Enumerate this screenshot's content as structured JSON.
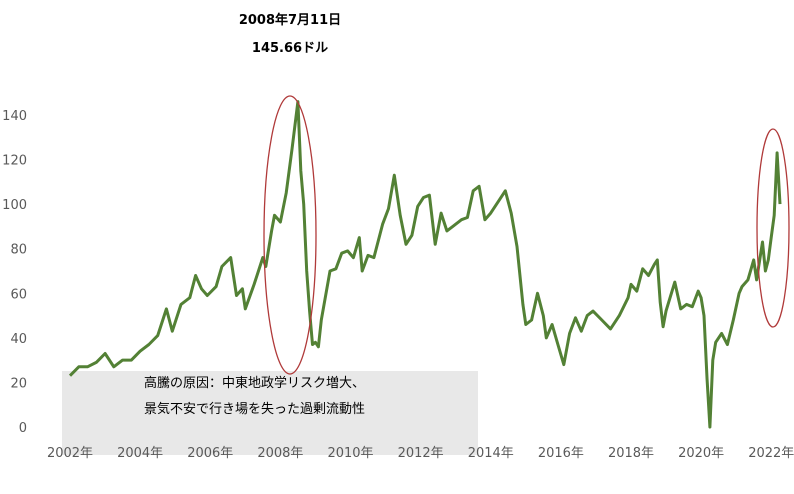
{
  "chart_data": {
    "type": "line",
    "title": "",
    "xlabel": "",
    "ylabel": "",
    "ylim": [
      0,
      150
    ],
    "xlim": [
      "2002-01",
      "2022-04"
    ],
    "grid": false,
    "legend": "none",
    "y_ticks": [
      "0",
      "20",
      "40",
      "60",
      "80",
      "100",
      "120",
      "140"
    ],
    "x_tick_labels": [
      "2002年",
      "2004年",
      "2006年",
      "2008年",
      "2010年",
      "2012年",
      "2014年",
      "2016年",
      "2018年",
      "2020年",
      "2022年"
    ],
    "series": [
      {
        "color": "#538135",
        "points": [
          [
            "2002-01",
            23
          ],
          [
            "2002-04",
            27
          ],
          [
            "2002-07",
            27
          ],
          [
            "2002-10",
            29
          ],
          [
            "2003-01",
            33
          ],
          [
            "2003-04",
            27
          ],
          [
            "2003-07",
            30
          ],
          [
            "2003-10",
            30
          ],
          [
            "2004-01",
            34
          ],
          [
            "2004-04",
            37
          ],
          [
            "2004-07",
            41
          ],
          [
            "2004-10",
            53
          ],
          [
            "2004-12",
            43
          ],
          [
            "2005-03",
            55
          ],
          [
            "2005-06",
            58
          ],
          [
            "2005-08",
            68
          ],
          [
            "2005-10",
            62
          ],
          [
            "2005-12",
            59
          ],
          [
            "2006-03",
            63
          ],
          [
            "2006-05",
            72
          ],
          [
            "2006-08",
            76
          ],
          [
            "2006-10",
            59
          ],
          [
            "2006-12",
            62
          ],
          [
            "2007-01",
            53
          ],
          [
            "2007-04",
            64
          ],
          [
            "2007-07",
            76
          ],
          [
            "2007-08",
            72
          ],
          [
            "2007-10",
            88
          ],
          [
            "2007-11",
            95
          ],
          [
            "2008-01",
            92
          ],
          [
            "2008-03",
            105
          ],
          [
            "2008-05",
            125
          ],
          [
            "2008-07",
            146
          ],
          [
            "2008-08",
            115
          ],
          [
            "2008-09",
            100
          ],
          [
            "2008-10",
            70
          ],
          [
            "2008-11",
            52
          ],
          [
            "2008-12",
            37
          ],
          [
            "2009-01",
            38
          ],
          [
            "2009-02",
            36
          ],
          [
            "2009-03",
            48
          ],
          [
            "2009-06",
            70
          ],
          [
            "2009-08",
            71
          ],
          [
            "2009-10",
            78
          ],
          [
            "2009-12",
            79
          ],
          [
            "2010-02",
            76
          ],
          [
            "2010-04",
            85
          ],
          [
            "2010-05",
            70
          ],
          [
            "2010-07",
            77
          ],
          [
            "2010-09",
            76
          ],
          [
            "2010-12",
            91
          ],
          [
            "2011-02",
            98
          ],
          [
            "2011-04",
            113
          ],
          [
            "2011-06",
            95
          ],
          [
            "2011-08",
            82
          ],
          [
            "2011-10",
            86
          ],
          [
            "2011-12",
            99
          ],
          [
            "2012-02",
            103
          ],
          [
            "2012-04",
            104
          ],
          [
            "2012-06",
            82
          ],
          [
            "2012-08",
            96
          ],
          [
            "2012-10",
            88
          ],
          [
            "2012-12",
            90
          ],
          [
            "2013-03",
            93
          ],
          [
            "2013-05",
            94
          ],
          [
            "2013-07",
            106
          ],
          [
            "2013-09",
            108
          ],
          [
            "2013-11",
            93
          ],
          [
            "2014-01",
            96
          ],
          [
            "2014-04",
            102
          ],
          [
            "2014-06",
            106
          ],
          [
            "2014-08",
            96
          ],
          [
            "2014-10",
            81
          ],
          [
            "2014-12",
            55
          ],
          [
            "2015-01",
            46
          ],
          [
            "2015-03",
            48
          ],
          [
            "2015-05",
            60
          ],
          [
            "2015-07",
            50
          ],
          [
            "2015-08",
            40
          ],
          [
            "2015-10",
            46
          ],
          [
            "2015-12",
            37
          ],
          [
            "2016-02",
            28
          ],
          [
            "2016-04",
            42
          ],
          [
            "2016-06",
            49
          ],
          [
            "2016-08",
            43
          ],
          [
            "2016-10",
            50
          ],
          [
            "2016-12",
            52
          ],
          [
            "2017-03",
            48
          ],
          [
            "2017-06",
            44
          ],
          [
            "2017-09",
            50
          ],
          [
            "2017-12",
            58
          ],
          [
            "2018-01",
            64
          ],
          [
            "2018-03",
            61
          ],
          [
            "2018-05",
            71
          ],
          [
            "2018-07",
            68
          ],
          [
            "2018-09",
            73
          ],
          [
            "2018-10",
            75
          ],
          [
            "2018-11",
            56
          ],
          [
            "2018-12",
            45
          ],
          [
            "2019-01",
            52
          ],
          [
            "2019-04",
            65
          ],
          [
            "2019-06",
            53
          ],
          [
            "2019-08",
            55
          ],
          [
            "2019-10",
            54
          ],
          [
            "2019-12",
            61
          ],
          [
            "2020-01",
            58
          ],
          [
            "2020-02",
            50
          ],
          [
            "2020-03",
            22
          ],
          [
            "2020-04",
            0
          ],
          [
            "2020-05",
            30
          ],
          [
            "2020-06",
            38
          ],
          [
            "2020-08",
            42
          ],
          [
            "2020-10",
            37
          ],
          [
            "2020-12",
            48
          ],
          [
            "2021-02",
            60
          ],
          [
            "2021-03",
            63
          ],
          [
            "2021-05",
            66
          ],
          [
            "2021-07",
            75
          ],
          [
            "2021-08",
            66
          ],
          [
            "2021-10",
            83
          ],
          [
            "2021-11",
            70
          ],
          [
            "2021-12",
            75
          ],
          [
            "2022-01",
            85
          ],
          [
            "2022-02",
            95
          ],
          [
            "2022-03",
            123
          ],
          [
            "2022-04",
            100
          ]
        ]
      }
    ],
    "annotations": {
      "peak_date": "2008年7月11日",
      "peak_price": "145.66ドル",
      "note_line1": "高騰の原因：中東地政学リスク増大、",
      "note_line2": "景気不安で行き場を失った過剰流動性"
    }
  }
}
